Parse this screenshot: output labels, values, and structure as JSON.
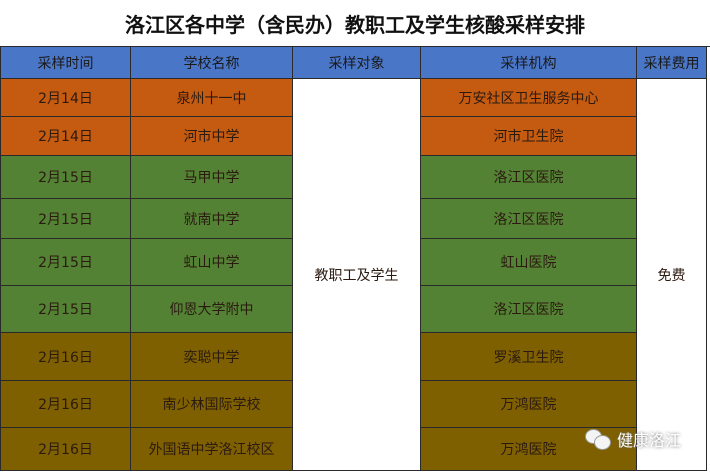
{
  "title": "洛江区各中学（含民办）教职工及学生核酸采样安排",
  "headers": [
    "采样时间",
    "学校名称",
    "采样对象",
    "采样机构",
    "采样费用"
  ],
  "rows": [
    {
      "date": "2月14日",
      "school": "泉州十一中",
      "org": "万安社区卫生服务中心",
      "color": "#c55a11"
    },
    {
      "date": "2月14日",
      "school": "河市中学",
      "org": "河市卫生院",
      "color": "#c55a11"
    },
    {
      "date": "2月15日",
      "school": "马甲中学",
      "org": "洛江区医院",
      "color": "#548235"
    },
    {
      "date": "2月15日",
      "school": "就南中学",
      "org": "洛江区医院",
      "color": "#548235"
    },
    {
      "date": "2月15日",
      "school": "虹山中学",
      "org": "虹山医院",
      "color": "#548235"
    },
    {
      "date": "2月15日",
      "school": "仰恩大学附中",
      "org": "洛江区医院",
      "color": "#548235"
    },
    {
      "date": "2月16日",
      "school": "奕聪中学",
      "org": "罗溪卫生院",
      "color": "#7f6000"
    },
    {
      "date": "2月16日",
      "school": "南少林国际学校",
      "org": "万鸿医院",
      "color": "#7f6000"
    },
    {
      "date": "2月16日",
      "school": "外国语中学洛江校区",
      "org": "万鸿医院",
      "color": "#7f6000"
    }
  ],
  "target": "教职工及学生",
  "fee": "免费",
  "watermark": "健康洛江",
  "header_color": "#4a76c8"
}
